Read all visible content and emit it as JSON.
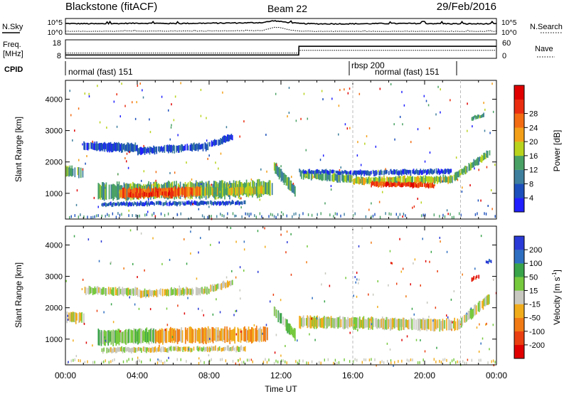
{
  "header": {
    "site": "Blackstone (fitACF)",
    "beam": "Beam 22",
    "date": "29/Feb/2016"
  },
  "side_labels": {
    "nsky": "N.Sky",
    "nsearch": "N.Search",
    "freq_line1": "Freq.",
    "freq_line2": "[MHz]",
    "nave": "Nave",
    "cpid": "CPID"
  },
  "noise_axis": {
    "left_ticks": [
      "10^5",
      "10^0"
    ],
    "right_ticks": [
      "10^5",
      "10^0"
    ]
  },
  "freq_axis": {
    "left_ticks": [
      "18",
      "8"
    ],
    "right_ticks": [
      "60",
      "0"
    ]
  },
  "cpid_segments": [
    {
      "label": "normal (fast) 151",
      "start_hour": 0,
      "end_hour": 16
    },
    {
      "label": "rbsp 200",
      "start_hour": 16,
      "end_hour": 22
    },
    {
      "label": "normal (fast) 151",
      "start_hour": 16,
      "end_hour": 22
    }
  ],
  "x_axis": {
    "label": "Time UT",
    "tick_labels": [
      "00:00",
      "04:00",
      "08:00",
      "12:00",
      "16:00",
      "20:00",
      "00:00"
    ],
    "range_hours": [
      0,
      24
    ]
  },
  "range_axis": {
    "label": "Slant Range [km]",
    "tick_labels": [
      "1000",
      "2000",
      "3000",
      "4000"
    ],
    "ticks": [
      1000,
      2000,
      3000,
      4000
    ],
    "range_km": [
      180,
      4600
    ]
  },
  "power_scale": {
    "label": "Power [dB]",
    "tick_labels": [
      "4",
      "8",
      "12",
      "16",
      "20",
      "24",
      "28"
    ],
    "colors": [
      "#1f1fff",
      "#1c4fbb",
      "#3e7f9d",
      "#4aa165",
      "#b9d31d",
      "#f3a018",
      "#f36c12",
      "#ea2d10",
      "#e00000"
    ]
  },
  "velocity_scale": {
    "label_main": "Velocity [m s",
    "label_sup": "-1",
    "label_end": "]",
    "tick_labels": [
      "200",
      "100",
      "50",
      "15",
      "-15",
      "-50",
      "-100",
      "-200"
    ],
    "colors": [
      "#2a3ad6",
      "#2f6fc1",
      "#38a349",
      "#76c93d",
      "#c8c8c0",
      "#f1ac1b",
      "#f17a15",
      "#ea3f10",
      "#e00000"
    ]
  },
  "chart_data": [
    {
      "type": "line",
      "title": "N.Sky / N.Search noise",
      "x": [
        0,
        2,
        4,
        6,
        8,
        10,
        11,
        11.6,
        12,
        12.5,
        13,
        14,
        16,
        18,
        20,
        22,
        24
      ],
      "series": [
        {
          "name": "N.Sky",
          "values": [
            3.4,
            3.3,
            3.5,
            3.4,
            3.5,
            3.6,
            3.7,
            4.3,
            4.0,
            3.7,
            3.4,
            3.3,
            3.3,
            3.4,
            3.4,
            3.3,
            3.3
          ]
        },
        {
          "name": "N.Search",
          "values": [
            0.9,
            0.9,
            1.0,
            1.0,
            1.0,
            1.1,
            1.2,
            2.2,
            2.0,
            1.3,
            1.0,
            0.9,
            0.9,
            0.9,
            0.9,
            0.9,
            0.9
          ]
        }
      ]
    },
    {
      "type": "line",
      "title": "Freq. / Nave",
      "x": [
        0,
        12.99,
        13,
        24
      ],
      "series": [
        {
          "name": "Freq.",
          "values": [
            9.8,
            9.8,
            14.5,
            14.5
          ]
        },
        {
          "name": "Nave",
          "values": [
            17,
            17,
            26,
            26
          ]
        }
      ]
    },
    {
      "type": "heatmap",
      "title": "Power [dB]",
      "xlabel": "Time UT",
      "ylabel": "Slant Range [km]",
      "x_range_hours": [
        0,
        24
      ],
      "y_range_km": [
        180,
        4600
      ],
      "bands": [
        {
          "start": 0,
          "end": 1.0,
          "r_start": 1700,
          "r_end": 1680,
          "width": 320,
          "level": 3
        },
        {
          "start": 1.0,
          "end": 4.0,
          "r_start": 2500,
          "r_end": 2450,
          "width": 260,
          "level": 1
        },
        {
          "start": 4.0,
          "end": 8.0,
          "r_start": 2350,
          "r_end": 2500,
          "width": 220,
          "level": 1
        },
        {
          "start": 8.0,
          "end": 9.3,
          "r_start": 2550,
          "r_end": 2800,
          "width": 200,
          "level": 1
        },
        {
          "start": 1.8,
          "end": 11.5,
          "r_start": 1050,
          "r_end": 1150,
          "width": 500,
          "level": 3
        },
        {
          "start": 3.0,
          "end": 7.5,
          "r_start": 1000,
          "r_end": 1050,
          "width": 300,
          "level": 6
        },
        {
          "start": 3.5,
          "end": 6.0,
          "r_start": 950,
          "r_end": 1000,
          "width": 150,
          "level": 7
        },
        {
          "start": 7.5,
          "end": 11.0,
          "r_start": 1050,
          "r_end": 1100,
          "width": 250,
          "level": 4
        },
        {
          "start": 2.0,
          "end": 10.0,
          "r_start": 650,
          "r_end": 700,
          "width": 120,
          "level": 1
        },
        {
          "start": 11.6,
          "end": 12.8,
          "r_start": 1850,
          "r_end": 1050,
          "width": 350,
          "level": 3
        },
        {
          "start": 13.0,
          "end": 16.0,
          "r_start": 1600,
          "r_end": 1450,
          "width": 250,
          "level": 3
        },
        {
          "start": 13.0,
          "end": 16.5,
          "r_start": 1700,
          "r_end": 1650,
          "width": 120,
          "level": 1
        },
        {
          "start": 16.0,
          "end": 21.5,
          "r_start": 1400,
          "r_end": 1450,
          "width": 220,
          "level": 4
        },
        {
          "start": 17.0,
          "end": 20.5,
          "r_start": 1300,
          "r_end": 1250,
          "width": 150,
          "level": 7
        },
        {
          "start": 16.0,
          "end": 21.5,
          "r_start": 1650,
          "r_end": 1700,
          "width": 150,
          "level": 1
        },
        {
          "start": 21.5,
          "end": 23.6,
          "r_start": 1450,
          "r_end": 2300,
          "width": 230,
          "level": 3
        },
        {
          "start": 22.6,
          "end": 23.3,
          "r_start": 3400,
          "r_end": 3500,
          "width": 120,
          "level": 3
        }
      ]
    },
    {
      "type": "heatmap",
      "title": "Velocity [m s-1]",
      "xlabel": "Time UT",
      "ylabel": "Slant Range [km]",
      "x_range_hours": [
        0,
        24
      ],
      "y_range_km": [
        180,
        4600
      ],
      "bands": [
        {
          "start": 0,
          "end": 1.0,
          "r_start": 1700,
          "r_end": 1680,
          "width": 320,
          "level": 4
        },
        {
          "start": 1.0,
          "end": 4.0,
          "r_start": 2550,
          "r_end": 2500,
          "width": 240,
          "level": 4
        },
        {
          "start": 4.0,
          "end": 8.0,
          "r_start": 2450,
          "r_end": 2550,
          "width": 220,
          "level": 4
        },
        {
          "start": 8.0,
          "end": 9.3,
          "r_start": 2600,
          "r_end": 2800,
          "width": 200,
          "level": 4
        },
        {
          "start": 1.8,
          "end": 5.0,
          "r_start": 1050,
          "r_end": 1100,
          "width": 450,
          "level": 3
        },
        {
          "start": 5.0,
          "end": 11.3,
          "r_start": 1100,
          "r_end": 1150,
          "width": 450,
          "level": 5
        },
        {
          "start": 2.0,
          "end": 10.0,
          "r_start": 650,
          "r_end": 700,
          "width": 150,
          "level": 4
        },
        {
          "start": 11.6,
          "end": 12.8,
          "r_start": 1900,
          "r_end": 1100,
          "width": 350,
          "level": 3
        },
        {
          "start": 13.0,
          "end": 21.8,
          "r_start": 1550,
          "r_end": 1450,
          "width": 350,
          "level": 4
        },
        {
          "start": 21.8,
          "end": 23.6,
          "r_start": 1450,
          "r_end": 2300,
          "width": 300,
          "level": 4
        },
        {
          "start": 22.6,
          "end": 23.0,
          "r_start": 2900,
          "r_end": 3000,
          "width": 120,
          "level": 8
        },
        {
          "start": 23.4,
          "end": 23.7,
          "r_start": 3450,
          "r_end": 3500,
          "width": 100,
          "level": 0
        }
      ]
    }
  ]
}
